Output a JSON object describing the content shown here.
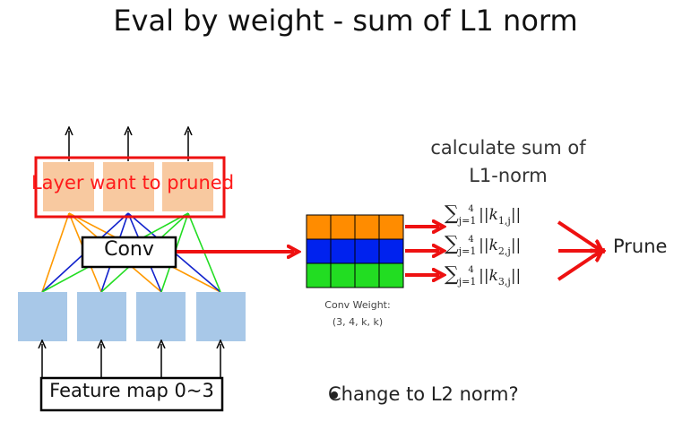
{
  "title": "Eval by weight - sum of L1 norm",
  "layer_label": "Layer want to pruned",
  "conv_label": "Conv",
  "feature_map_label": "Feature map 0~3",
  "calc": {
    "line1": "calculate sum of",
    "line2": "L1-norm"
  },
  "conv_weight": {
    "line1": "Conv Weight:",
    "line2": "(3, 4, k, k)",
    "row_colors": [
      "#ff8c00",
      "#0022ee",
      "#22dd22"
    ]
  },
  "formulas": [
    {
      "sum_sub": "j=1",
      "sum_sup": "4",
      "k_sub": "1,j"
    },
    {
      "sum_sub": "j=1",
      "sum_sup": "4",
      "k_sub": "2,j"
    },
    {
      "sum_sub": "j=1",
      "sum_sup": "4",
      "k_sub": "3,j"
    }
  ],
  "prune_label": "Prune",
  "bullet": "Change to L2 norm?",
  "colors": {
    "accent_red": "#ee1111",
    "node_orange": "#f8c9a0",
    "node_blue": "#a8c8e8",
    "edge_orange": "#ff9900",
    "edge_blue": "#1122cc",
    "edge_green": "#22dd22"
  }
}
